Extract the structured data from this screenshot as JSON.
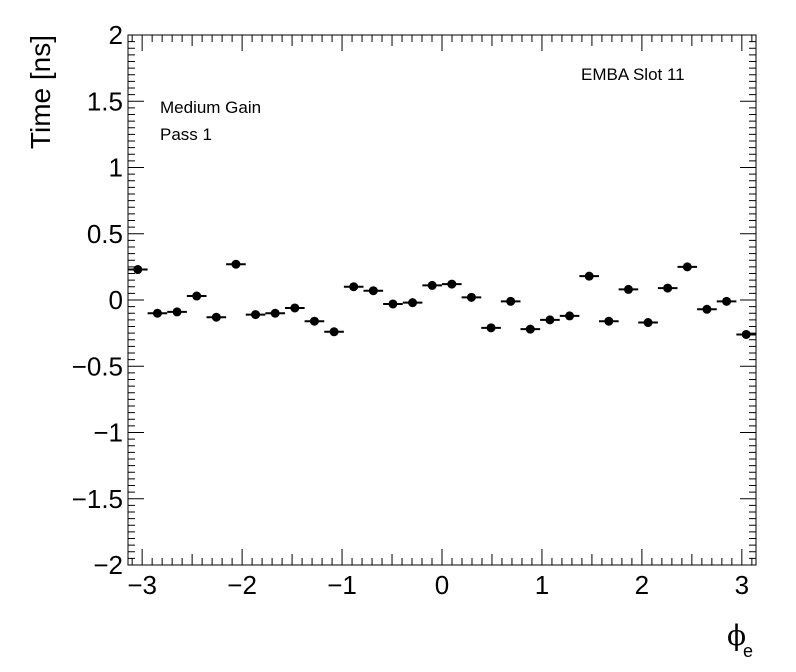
{
  "chart_data": {
    "type": "scatter",
    "title": "",
    "xlabel": "ϕ",
    "xlabel_subscript": "e",
    "ylabel": "Time [ns]",
    "xlim": [
      -3.1416,
      3.1416
    ],
    "ylim": [
      -2,
      2
    ],
    "x_ticks": [
      -3,
      -2,
      -1,
      0,
      1,
      2,
      3
    ],
    "x_tick_labels": [
      "−3",
      "−2",
      "−1",
      "0",
      "1",
      "2",
      "3"
    ],
    "y_ticks": [
      -2,
      -1.5,
      -1,
      -0.5,
      0,
      0.5,
      1,
      1.5,
      2
    ],
    "y_tick_labels": [
      "−2",
      "−1.5",
      "−1",
      "−0.5",
      "0",
      "0.5",
      "1",
      "1.5",
      "2"
    ],
    "grid": false,
    "bin_width": 0.19635,
    "annotations": [
      "EMBA Slot 11",
      "Medium Gain",
      "Pass 1"
    ],
    "series": [
      {
        "x": [
          -3.0434,
          -2.8471,
          -2.6507,
          -2.4544,
          -2.258,
          -2.0617,
          -1.8653,
          -1.669,
          -1.4726,
          -1.2763,
          -1.0799,
          -0.8836,
          -0.6872,
          -0.4909,
          -0.2945,
          -0.0982,
          0.0982,
          0.2945,
          0.4909,
          0.6872,
          0.8836,
          1.0799,
          1.2763,
          1.4726,
          1.669,
          1.8653,
          2.0617,
          2.258,
          2.4544,
          2.6507,
          2.8471,
          3.0434
        ],
        "y": [
          0.23,
          -0.1,
          -0.09,
          0.03,
          -0.13,
          0.27,
          -0.11,
          -0.1,
          -0.06,
          -0.16,
          -0.24,
          0.1,
          0.07,
          -0.03,
          -0.02,
          0.11,
          0.12,
          0.02,
          -0.21,
          -0.01,
          -0.22,
          -0.15,
          -0.12,
          0.18,
          -0.16,
          0.08,
          -0.17,
          0.09,
          0.25,
          -0.07,
          -0.01,
          -0.26
        ]
      }
    ]
  }
}
